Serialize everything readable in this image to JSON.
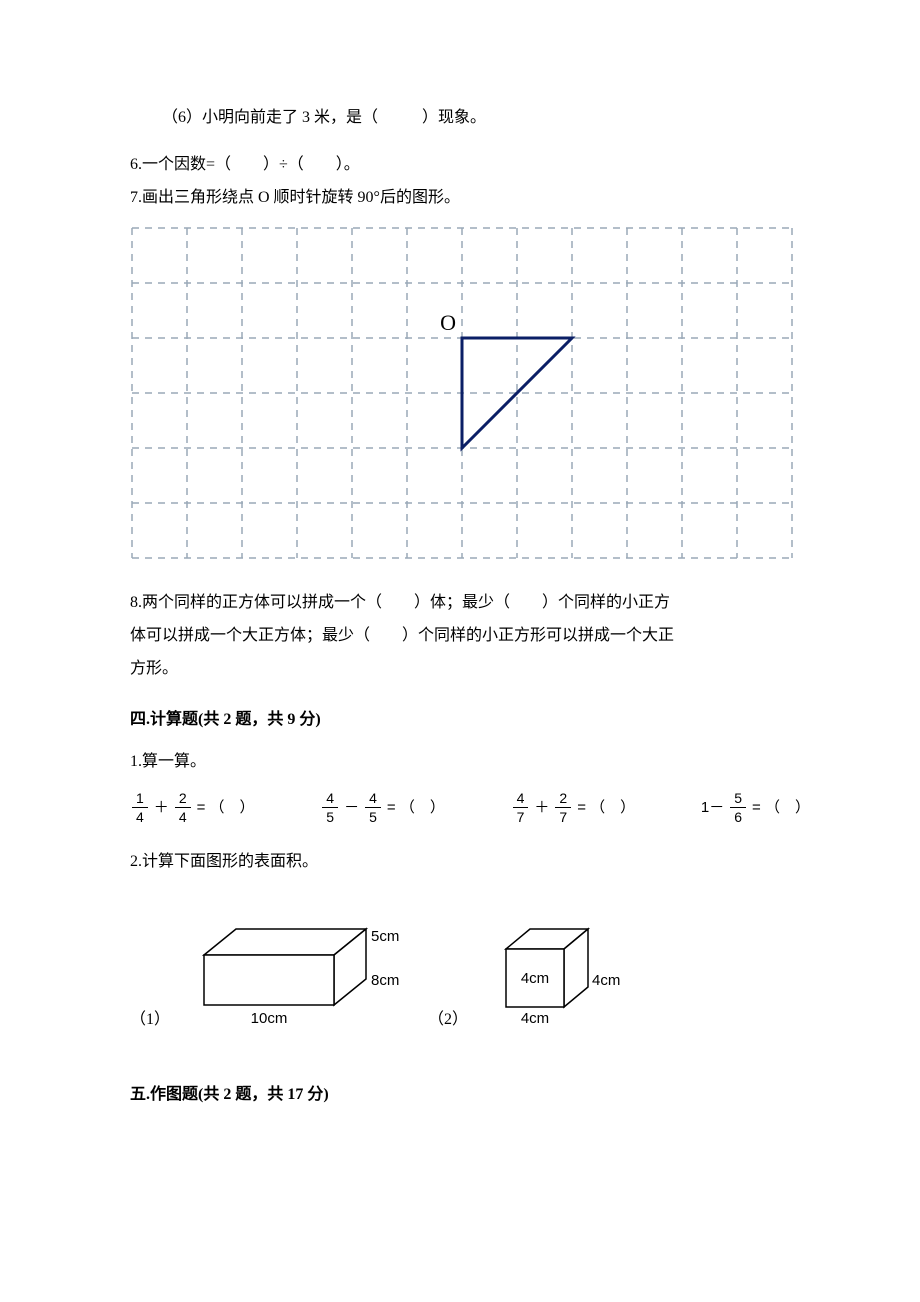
{
  "q5_6": {
    "prefix": "（6）小明向前走了 3 米，是（",
    "suffix": "）现象。"
  },
  "q6": "6.一个因数=（　　）÷（　　）。",
  "q7": "7.画出三角形绕点 O 顺时针旋转 90°后的图形。",
  "grid_fig": {
    "cols": 12,
    "rows": 6,
    "cell": 55,
    "grid_color": "#9aa9b7",
    "bg": "#ffffff",
    "label_O": "O",
    "triangle": {
      "stroke": "#0b1f66",
      "stroke_width": 3,
      "points": [
        [
          6,
          2
        ],
        [
          8,
          2
        ],
        [
          6,
          4
        ]
      ]
    },
    "label_font": "22px Times New Roman"
  },
  "q8_l1": "8.两个同样的正方体可以拼成一个（　　）体；最少（　　）个同样的小正方",
  "q8_l2": "体可以拼成一个大正方体；最少（　　）个同样的小正方形可以拼成一个大正",
  "q8_l3": "方形。",
  "sec4": "四.计算题(共 2 题，共 9 分)",
  "s4q1": "1.算一算。",
  "calc": {
    "eq": " = ",
    "open": "（",
    "close": "）",
    "items": [
      {
        "a_num": "1",
        "a_den": "4",
        "op": "＋",
        "b_num": "2",
        "b_den": "4",
        "one_minus": false
      },
      {
        "a_num": "4",
        "a_den": "5",
        "op": "－",
        "b_num": "4",
        "b_den": "5",
        "one_minus": false
      },
      {
        "a_num": "4",
        "a_den": "7",
        "op": "＋",
        "b_num": "2",
        "b_den": "7",
        "one_minus": false
      },
      {
        "a_num": "5",
        "a_den": "6",
        "op": "",
        "b_num": "",
        "b_den": "",
        "one_minus": true,
        "lead": "1－"
      }
    ]
  },
  "s4q2": "2.计算下面图形的表面积。",
  "shape1": {
    "idx": "（1）",
    "w": "10cm",
    "d": "8cm",
    "h": "5cm"
  },
  "shape2": {
    "idx": "（2）",
    "a": "4cm"
  },
  "shape_colors": {
    "stroke": "#000000",
    "fill": "#ffffff",
    "label_font": "15px Arial"
  },
  "sec5": "五.作图题(共 2 题，共 17 分)"
}
